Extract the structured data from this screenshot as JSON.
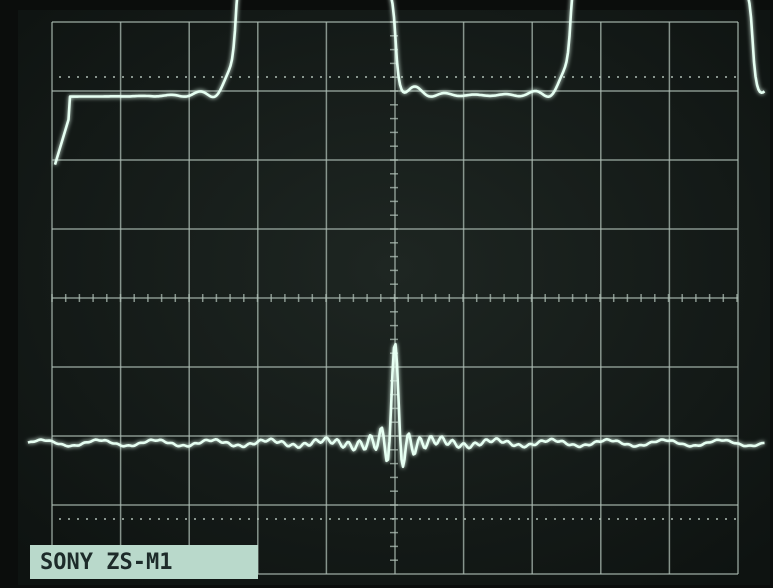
{
  "label": "SONY ZS-M1"
}
